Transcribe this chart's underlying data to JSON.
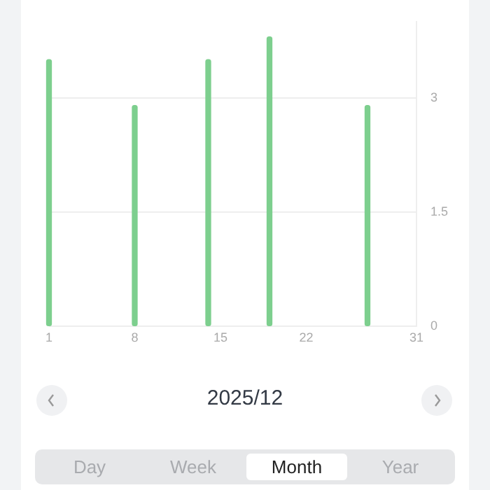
{
  "chart_data": {
    "type": "bar",
    "x": [
      1,
      8,
      14,
      19,
      27
    ],
    "values": [
      3.5,
      2.9,
      3.5,
      3.8,
      2.9
    ],
    "color": "#7dcf8e",
    "xlim": [
      1,
      31
    ],
    "xticks": [
      1,
      8,
      15,
      22,
      31
    ],
    "ylim": [
      0,
      4
    ],
    "yticks": [
      0,
      1.5,
      3
    ],
    "grid": "y",
    "legend": false,
    "annotations": [
      "2025/12",
      "Day",
      "Week",
      "Month",
      "Year"
    ]
  }
}
